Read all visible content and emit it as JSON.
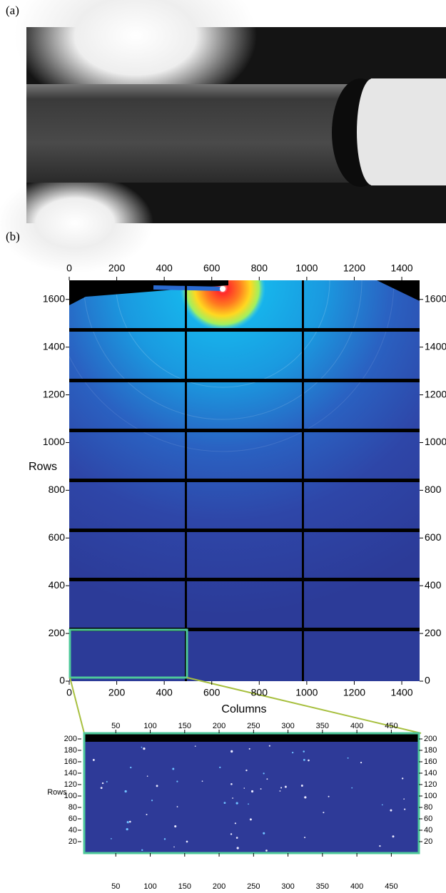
{
  "panel_a": {
    "label": "(a)"
  },
  "panel_b": {
    "label": "(b)",
    "main": {
      "x_label": "Columns",
      "y_label": "Rows",
      "xlim": [
        0,
        1475
      ],
      "ylim": [
        0,
        1680
      ],
      "xticks": [
        0,
        200,
        400,
        600,
        800,
        1000,
        1200,
        1400
      ],
      "yticks": [
        0,
        200,
        400,
        600,
        800,
        1000,
        1200,
        1400,
        1600
      ]
    },
    "inset": {
      "y_label": "Rows",
      "xlim": [
        0,
        490
      ],
      "ylim": [
        0,
        210
      ],
      "xticks": [
        50,
        100,
        150,
        200,
        250,
        300,
        350,
        400,
        450
      ],
      "yticks": [
        20,
        40,
        60,
        80,
        100,
        120,
        140,
        160,
        180,
        200
      ]
    }
  }
}
